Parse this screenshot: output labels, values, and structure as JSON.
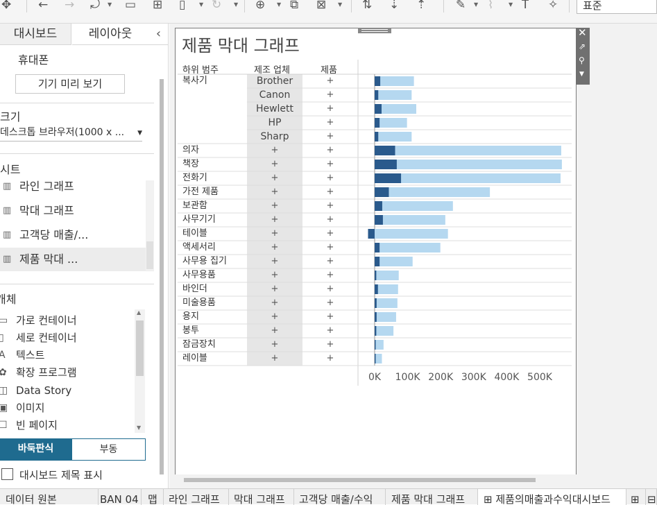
{
  "toolbar": {
    "standard_select": "표준",
    "icons": [
      "move-icon",
      "back-icon",
      "forward-icon",
      "connect-icon",
      "save-icon",
      "new-sheet-icon",
      "new-dashboard-icon",
      "refresh-icon",
      "new-worksheet-icon",
      "duplicate-icon",
      "clear-icon",
      "swap-icon",
      "sort-ascending-icon",
      "sort-descending-icon",
      "highlight-icon",
      "attach-icon",
      "text-icon",
      "pin-icon"
    ]
  },
  "sidebar": {
    "tabs": [
      "대시보드",
      "레이아웃"
    ],
    "collapse_glyph": "‹",
    "device_label": "휴대폰",
    "device_preview_button": "기기 미리 보기",
    "size_label": "크기",
    "size_value": "데스크톱 브라우저(1000 x ...",
    "sheets_label": "시트",
    "sheets": [
      "라인 그래프",
      "막대 그래프",
      "고객당 매출/...",
      "제품 막대 ..."
    ],
    "objects_label": "개체",
    "objects": [
      {
        "icon": "horizontal-container-icon",
        "glyph": "▭",
        "label": "가로 컨테이너"
      },
      {
        "icon": "vertical-container-icon",
        "glyph": "▯",
        "label": "세로 컨테이너"
      },
      {
        "icon": "text-object-icon",
        "glyph": "A",
        "label": "텍스트"
      },
      {
        "icon": "extension-icon",
        "glyph": "✿",
        "label": "확장 프로그램"
      },
      {
        "icon": "data-story-icon",
        "glyph": "◫",
        "label": "Data Story"
      },
      {
        "icon": "image-icon",
        "glyph": "▣",
        "label": "이미지"
      },
      {
        "icon": "blank-page-icon",
        "glyph": "☐",
        "label": "빈 페이지"
      }
    ],
    "tiled_button": "바둑판식",
    "floating_button": "부동",
    "show_title_label": "대시보드 제목 표시"
  },
  "dashboard": {
    "title": "제품 막대 그래프",
    "col_headers": [
      "하위 범주",
      "제조 업체",
      "제품"
    ],
    "rows": [
      {
        "category": "복사기",
        "maker": "Brother",
        "product": "+"
      },
      {
        "category": "",
        "maker": "Canon",
        "product": "+"
      },
      {
        "category": "",
        "maker": "Hewlett",
        "product": "+"
      },
      {
        "category": "",
        "maker": "HP",
        "product": "+"
      },
      {
        "category": "",
        "maker": "Sharp",
        "product": "+"
      },
      {
        "category": "의자",
        "maker": "+",
        "product": "+"
      },
      {
        "category": "책장",
        "maker": "+",
        "product": "+"
      },
      {
        "category": "전화기",
        "maker": "+",
        "product": "+"
      },
      {
        "category": "가전 제품",
        "maker": "+",
        "product": "+"
      },
      {
        "category": "보관함",
        "maker": "+",
        "product": "+"
      },
      {
        "category": "사무기기",
        "maker": "+",
        "product": "+"
      },
      {
        "category": "테이블",
        "maker": "+",
        "product": "+"
      },
      {
        "category": "액세서리",
        "maker": "+",
        "product": "+"
      },
      {
        "category": "사무용 집기",
        "maker": "+",
        "product": "+"
      },
      {
        "category": "사무용품",
        "maker": "+",
        "product": "+"
      },
      {
        "category": "바인더",
        "maker": "+",
        "product": "+"
      },
      {
        "category": "미술용품",
        "maker": "+",
        "product": "+"
      },
      {
        "category": "용지",
        "maker": "+",
        "product": "+"
      },
      {
        "category": "봉투",
        "maker": "+",
        "product": "+"
      },
      {
        "category": "잠금장치",
        "maker": "+",
        "product": "+"
      },
      {
        "category": "레이블",
        "maker": "+",
        "product": "+"
      }
    ]
  },
  "chart_data": {
    "type": "bar",
    "orientation": "horizontal",
    "categories": [
      "복사기 / Brother",
      "복사기 / Canon",
      "복사기 / Hewlett",
      "복사기 / HP",
      "복사기 / Sharp",
      "의자",
      "책장",
      "전화기",
      "가전 제품",
      "보관함",
      "사무기기",
      "테이블",
      "액세서리",
      "사무용 집기",
      "사무용품",
      "바인더",
      "미술용품",
      "용지",
      "봉투",
      "잠금장치",
      "레이블"
    ],
    "series": [
      {
        "values": [
          119000,
          112000,
          126000,
          98000,
          112000,
          565000,
          567000,
          563000,
          349000,
          237000,
          214000,
          222000,
          199000,
          115000,
          73000,
          71000,
          69000,
          65000,
          57000,
          27000,
          22000
        ]
      },
      {
        "values": [
          17000,
          11000,
          21000,
          15000,
          11000,
          62000,
          67000,
          80000,
          43000,
          23000,
          25000,
          -20000,
          15000,
          15000,
          5000,
          10000,
          6000,
          6000,
          5000,
          1000,
          2000
        ]
      }
    ],
    "colors": [
      "#b5d8f0",
      "#2a5a8c"
    ],
    "xlim": [
      -20000,
      570000
    ],
    "xticks": [
      "0K",
      "100K",
      "200K",
      "300K",
      "400K",
      "500K"
    ],
    "grid": true
  },
  "viz_controls": [
    "close-icon",
    "open-external-icon",
    "pin-icon",
    "more-options-icon"
  ],
  "bottom_tabs": [
    {
      "label": "데이터 원본",
      "icon": "data-source-icon"
    },
    {
      "label": "BAN 04",
      "icon": ""
    },
    {
      "label": "맵",
      "icon": ""
    },
    {
      "label": "라인 그래프",
      "icon": ""
    },
    {
      "label": "막대 그래프",
      "icon": ""
    },
    {
      "label": "고객당 매출/수익",
      "icon": ""
    },
    {
      "label": "제품 막대 그래프",
      "icon": ""
    },
    {
      "label": "⊞ 제품의매출과수익대시보드",
      "icon": "dashboard-icon"
    }
  ]
}
